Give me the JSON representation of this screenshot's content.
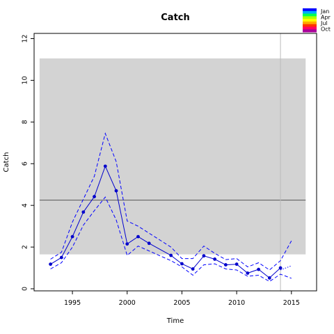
{
  "chart_data": {
    "type": "line",
    "title": "Catch",
    "xlabel": "Time",
    "ylabel": "Catch",
    "xlim": [
      1991.5,
      2017.3
    ],
    "ylim": [
      -0.1,
      12.25
    ],
    "xticks": [
      1995,
      2000,
      2005,
      2010,
      2015
    ],
    "yticks": [
      0,
      2,
      4,
      6,
      8,
      10,
      12
    ],
    "band": {
      "x": [
        1992,
        2016.3
      ],
      "y": [
        1.65,
        11.05
      ],
      "color": "#d3d3d3"
    },
    "reference_lines": {
      "horizontal_y": 4.25,
      "vertical_x": 2014
    },
    "series": [
      {
        "style": "solid-with-points",
        "color": "#0000cc",
        "x": [
          1993,
          1994,
          1995,
          1996,
          1997,
          1998,
          1999,
          2000,
          2001,
          2002,
          2004,
          2005,
          2006,
          2007,
          2008,
          2009,
          2010,
          2011,
          2012,
          2013,
          2014
        ],
        "values": [
          1.18,
          1.5,
          2.5,
          3.68,
          4.42,
          5.88,
          4.7,
          2.15,
          2.5,
          2.18,
          1.6,
          1.2,
          0.95,
          1.58,
          1.42,
          1.15,
          1.18,
          0.75,
          0.93,
          0.52,
          1.0
        ]
      },
      {
        "style": "dashed",
        "color": "#0000ff",
        "x": [
          1993,
          1994,
          1995,
          1996,
          1997,
          1998,
          1999,
          2000,
          2001,
          2004,
          2005,
          2006,
          2007,
          2008,
          2009,
          2010,
          2011,
          2012,
          2013,
          2014,
          2015
        ],
        "values": [
          1.42,
          1.75,
          3.2,
          4.3,
          5.4,
          7.45,
          6.1,
          3.25,
          3.0,
          2.0,
          1.45,
          1.45,
          2.05,
          1.7,
          1.4,
          1.45,
          1.05,
          1.25,
          0.9,
          1.35,
          2.3
        ]
      },
      {
        "style": "dashed",
        "color": "#0000ff",
        "x": [
          1993,
          1994,
          1995,
          1996,
          1997,
          1998,
          1999,
          2000,
          2001,
          2004,
          2005,
          2006,
          2007,
          2008,
          2009,
          2010,
          2011,
          2012,
          2013,
          2014,
          2015
        ],
        "values": [
          0.95,
          1.25,
          2.0,
          3.05,
          3.75,
          4.4,
          3.3,
          1.6,
          2.05,
          1.35,
          1.05,
          0.65,
          1.15,
          1.2,
          0.95,
          0.9,
          0.6,
          0.65,
          0.35,
          0.7,
          0.5
        ]
      },
      {
        "style": "dotted",
        "color": "#0000ff",
        "x": [
          2014,
          2015
        ],
        "values": [
          0.9,
          1.1
        ]
      }
    ],
    "legend": {
      "position": "top-right",
      "labels": [
        "Jan",
        "Apr",
        "Jul",
        "Oct"
      ],
      "colors": [
        "#0000ff",
        "#00aaff",
        "#00ff55",
        "#aaff00",
        "#ffff00",
        "#ffaa00",
        "#ff3300",
        "#ff0066",
        "#aa0099"
      ]
    }
  }
}
